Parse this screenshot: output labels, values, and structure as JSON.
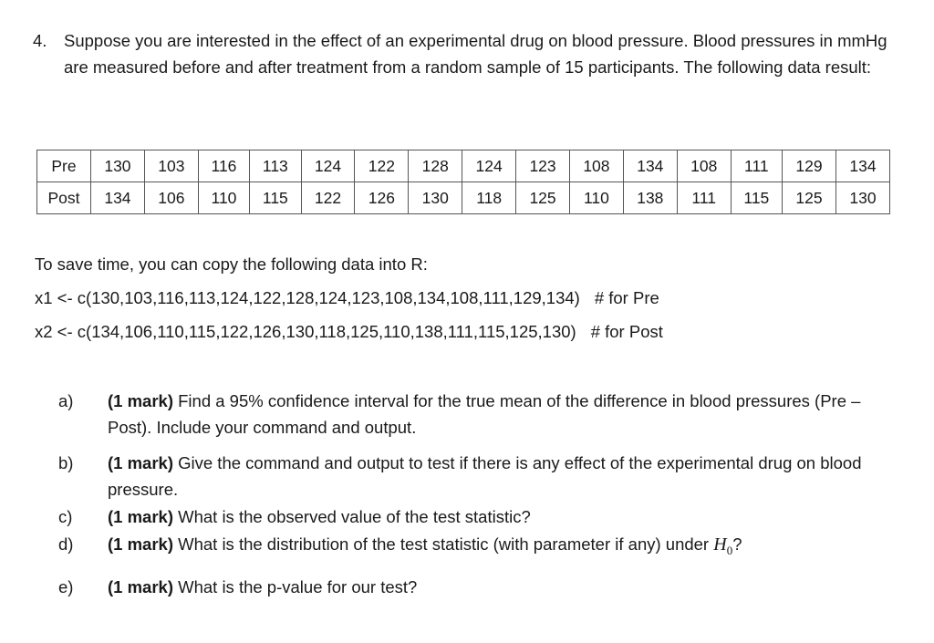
{
  "problem": {
    "number": "4.",
    "text": "Suppose you are interested in the effect of an experimental drug on blood pressure. Blood pressures in mmHg are measured before and after treatment from a random sample of 15 participants. The following data result:"
  },
  "table": {
    "rows": [
      {
        "label": "Pre",
        "values": [
          "130",
          "103",
          "116",
          "113",
          "124",
          "122",
          "128",
          "124",
          "123",
          "108",
          "134",
          "108",
          "111",
          "129",
          "134"
        ]
      },
      {
        "label": "Post",
        "values": [
          "134",
          "106",
          "110",
          "115",
          "122",
          "126",
          "130",
          "118",
          "125",
          "110",
          "138",
          "111",
          "115",
          "125",
          "130"
        ]
      }
    ]
  },
  "rhint": {
    "intro": "To save time, you can copy the following data into R:",
    "line1_code": "x1 <- c(130,103,116,113,124,122,128,124,123,108,134,108,111,129,134)",
    "line1_comment": "# for Pre",
    "line2_code": "x2 <- c(134,106,110,115,122,126,130,118,125,110,138,111,115,125,130)",
    "line2_comment": "# for Post"
  },
  "questions": [
    {
      "label": "a)",
      "mark": "(1 mark)",
      "text": " Find a 95% confidence interval for the true mean of the difference in blood pressures (Pre – Post). Include your command and output."
    },
    {
      "label": "b)",
      "mark": "(1 mark)",
      "text": " Give the command and output to test if there is any effect of the experimental drug on blood pressure."
    },
    {
      "label": "c)",
      "mark": "(1 mark)",
      "text": " What is the observed value of the test statistic?"
    },
    {
      "label": "d)",
      "mark": "(1 mark)",
      "text": " What is the distribution of the test statistic (with parameter if any) under ",
      "h0": "H",
      "h0_sub": "0",
      "after": "?"
    },
    {
      "label": "e)",
      "mark": "(1 mark)",
      "text": " What is the p-value for our test?"
    }
  ]
}
